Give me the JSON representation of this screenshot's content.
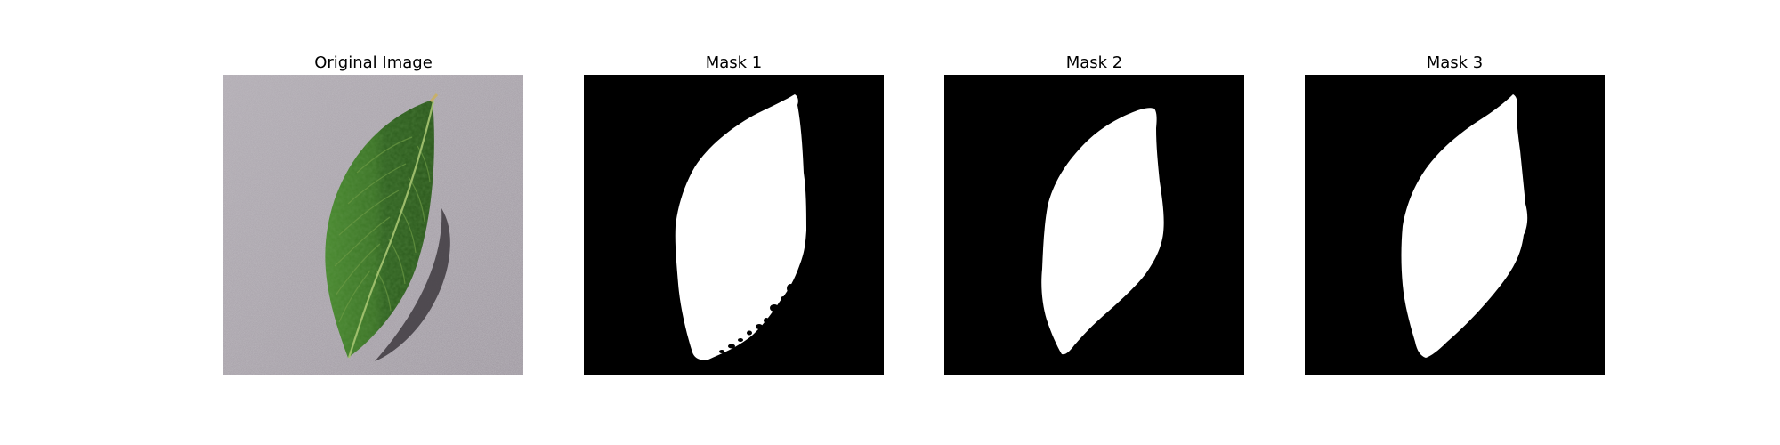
{
  "figure": {
    "panels": [
      {
        "title": "Original Image"
      },
      {
        "title": "Mask 1"
      },
      {
        "title": "Mask 2"
      },
      {
        "title": "Mask 3"
      }
    ]
  },
  "colors": {
    "background": "#ffffff",
    "surface": "#aba6ad",
    "surface_speckle_dark": "#8f8a92",
    "surface_speckle_light": "#c6c1c8",
    "leaf_dark": "#2d5a1c",
    "leaf_mid": "#3f7a2a",
    "leaf_light": "#5c9a3e",
    "leaf_vein": "#9fbf6a",
    "leaf_shadow": "#3e3a40",
    "mask_background": "#000000",
    "mask_foreground": "#ffffff"
  },
  "icons": {
    "original": "leaf-photo",
    "masks": "leaf-silhouette"
  }
}
